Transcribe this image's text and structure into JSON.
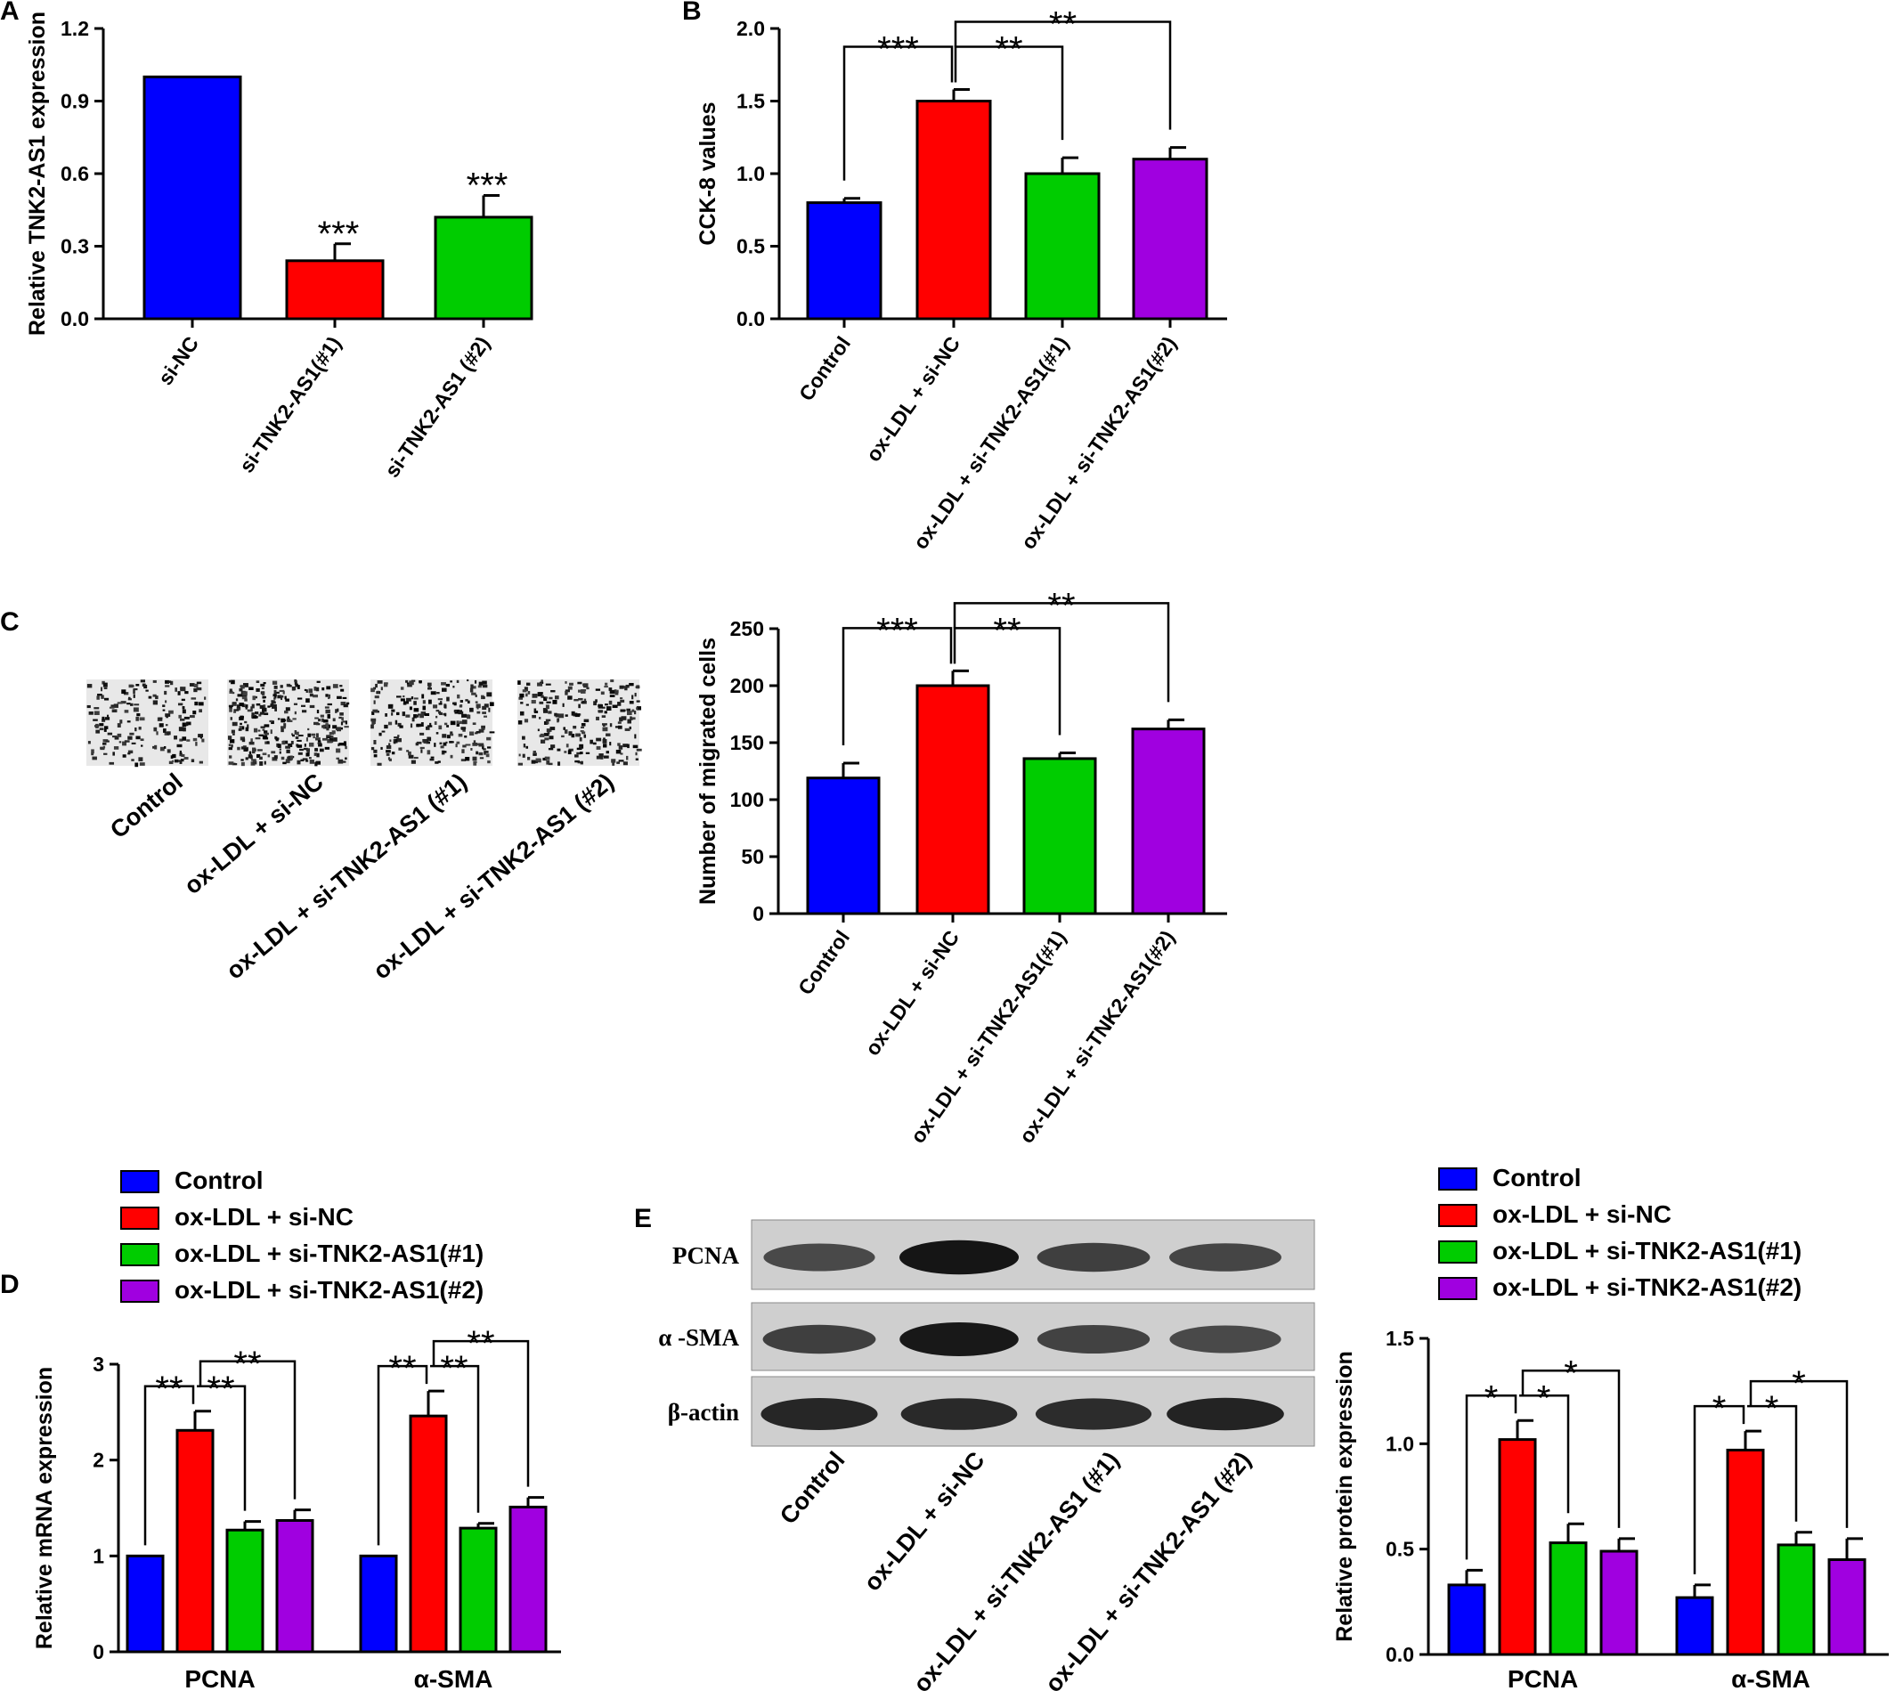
{
  "colors": {
    "blue": "#0000ff",
    "red": "#ff0000",
    "green": "#00cc00",
    "purple": "#a000e0"
  },
  "chart_data": [
    {
      "panel": "A",
      "type": "bar",
      "ylabel": "Relative TNK2-AS1 expression",
      "ylim": [
        0,
        1.2
      ],
      "ticks": [
        "0.0",
        "0.3",
        "0.6",
        "0.9",
        "1.2"
      ],
      "categories": [
        "si-NC",
        "si-TNK2-AS1(#1)",
        "si-TNK2-AS1 (#2)"
      ],
      "values": [
        1.0,
        0.24,
        0.42
      ],
      "errors": [
        0,
        0.07,
        0.09
      ],
      "colors": [
        "#0000ff",
        "#ff0000",
        "#00cc00"
      ],
      "stars": [
        {
          "bar": 1,
          "text": "***"
        },
        {
          "bar": 2,
          "text": "***"
        }
      ]
    },
    {
      "panel": "B",
      "type": "bar",
      "ylabel": "CCK-8 values",
      "ylim": [
        0,
        2.0
      ],
      "ticks": [
        "0.0",
        "0.5",
        "1.0",
        "1.5",
        "2.0"
      ],
      "categories": [
        "Control",
        "ox-LDL + si-NC",
        "ox-LDL + si-TNK2-AS1(#1)",
        "ox-LDL + si-TNK2-AS1(#2)"
      ],
      "values": [
        0.8,
        1.5,
        1.0,
        1.1
      ],
      "errors": [
        0.03,
        0.08,
        0.11,
        0.08
      ],
      "colors": [
        "#0000ff",
        "#ff0000",
        "#00cc00",
        "#a000e0"
      ],
      "brackets": [
        {
          "from": 0,
          "to": 1,
          "text": "***"
        },
        {
          "from": 1,
          "to": 2,
          "text": "**"
        },
        {
          "from": 1,
          "to": 3,
          "text": "**"
        }
      ]
    },
    {
      "panel": "C",
      "type": "bar",
      "ylabel": "Number of migrated cells",
      "ylim": [
        0,
        250
      ],
      "ticks": [
        "0",
        "50",
        "100",
        "150",
        "200",
        "250"
      ],
      "categories": [
        "Control",
        "ox-LDL + si-NC",
        "ox-LDL + si-TNK2-AS1(#1)",
        "ox-LDL + si-TNK2-AS1(#2)"
      ],
      "values": [
        119,
        200,
        136,
        162
      ],
      "errors": [
        13,
        13,
        5,
        8
      ],
      "colors": [
        "#0000ff",
        "#ff0000",
        "#00cc00",
        "#a000e0"
      ],
      "brackets": [
        {
          "from": 0,
          "to": 1,
          "text": "***"
        },
        {
          "from": 1,
          "to": 2,
          "text": "**"
        },
        {
          "from": 1,
          "to": 3,
          "text": "**"
        }
      ]
    },
    {
      "panel": "D",
      "type": "bar",
      "ylabel": "Relative mRNA expression",
      "ylim": [
        0,
        3
      ],
      "ticks": [
        "0",
        "1",
        "2",
        "3"
      ],
      "groups": [
        "PCNA",
        "α-SMA"
      ],
      "series": [
        {
          "name": "Control",
          "values": [
            1.0,
            1.0
          ],
          "errors": [
            0,
            0
          ]
        },
        {
          "name": "ox-LDL + si-NC",
          "values": [
            2.31,
            2.46
          ],
          "errors": [
            0.2,
            0.26
          ]
        },
        {
          "name": "ox-LDL + si-TNK2-AS1(#1)",
          "values": [
            1.27,
            1.29
          ],
          "errors": [
            0.09,
            0.05
          ]
        },
        {
          "name": "ox-LDL + si-TNK2-AS1(#2)",
          "values": [
            1.37,
            1.51
          ],
          "errors": [
            0.11,
            0.1
          ]
        }
      ],
      "colors": [
        "#0000ff",
        "#ff0000",
        "#00cc00",
        "#a000e0"
      ],
      "brackets": [
        {
          "from": 0,
          "to": 1,
          "text": "**"
        },
        {
          "from": 1,
          "to": 2,
          "text": "**"
        },
        {
          "from": 1,
          "to": 3,
          "text": "**"
        }
      ]
    },
    {
      "panel": "E",
      "type": "bar",
      "ylabel": "Relative protein expression",
      "ylim": [
        0,
        1.5
      ],
      "ticks": [
        "0.0",
        "0.5",
        "1.0",
        "1.5"
      ],
      "groups": [
        "PCNA",
        "α-SMA"
      ],
      "series": [
        {
          "name": "Control",
          "values": [
            0.33,
            0.27
          ],
          "errors": [
            0.07,
            0.06
          ]
        },
        {
          "name": "ox-LDL + si-NC",
          "values": [
            1.02,
            0.97
          ],
          "errors": [
            0.09,
            0.09
          ]
        },
        {
          "name": "ox-LDL + si-TNK2-AS1(#1)",
          "values": [
            0.53,
            0.52
          ],
          "errors": [
            0.09,
            0.06
          ]
        },
        {
          "name": "ox-LDL + si-TNK2-AS1(#2)",
          "values": [
            0.49,
            0.45
          ],
          "errors": [
            0.06,
            0.1
          ]
        }
      ],
      "colors": [
        "#0000ff",
        "#ff0000",
        "#00cc00",
        "#a000e0"
      ],
      "brackets": [
        {
          "from": 0,
          "to": 1,
          "text": "*"
        },
        {
          "from": 1,
          "to": 2,
          "text": "*"
        },
        {
          "from": 1,
          "to": 3,
          "text": "*"
        }
      ]
    }
  ],
  "legend": {
    "items": [
      {
        "label": "Control",
        "color": "#0000ff"
      },
      {
        "label": "ox-LDL + si-NC",
        "color": "#ff0000"
      },
      {
        "label": "ox-LDL + si-TNK2-AS1(#1)",
        "color": "#00cc00"
      },
      {
        "label": "ox-LDL + si-TNK2-AS1(#2)",
        "color": "#a000e0"
      }
    ]
  },
  "panel_c_images": {
    "labels": [
      "Control",
      "ox-LDL + si-NC",
      "ox-LDL + si-TNK2-AS1 (#1)",
      "ox-LDL + si-TNK2-AS1 (#2)"
    ],
    "densities": [
      0.35,
      0.62,
      0.45,
      0.48
    ]
  },
  "western_blot": {
    "rows": [
      {
        "label": "PCNA",
        "intensities": [
          0.55,
          0.92,
          0.62,
          0.58
        ]
      },
      {
        "label": "α -SMA",
        "intensities": [
          0.62,
          0.9,
          0.6,
          0.55
        ]
      },
      {
        "label": "β-actin",
        "intensities": [
          0.8,
          0.78,
          0.76,
          0.82
        ]
      }
    ],
    "lanes": [
      "Control",
      "ox-LDL + si-NC",
      "ox-LDL + si-TNK2-AS1 (#1)",
      "ox-LDL + si-TNK2-AS1 (#2)"
    ]
  }
}
